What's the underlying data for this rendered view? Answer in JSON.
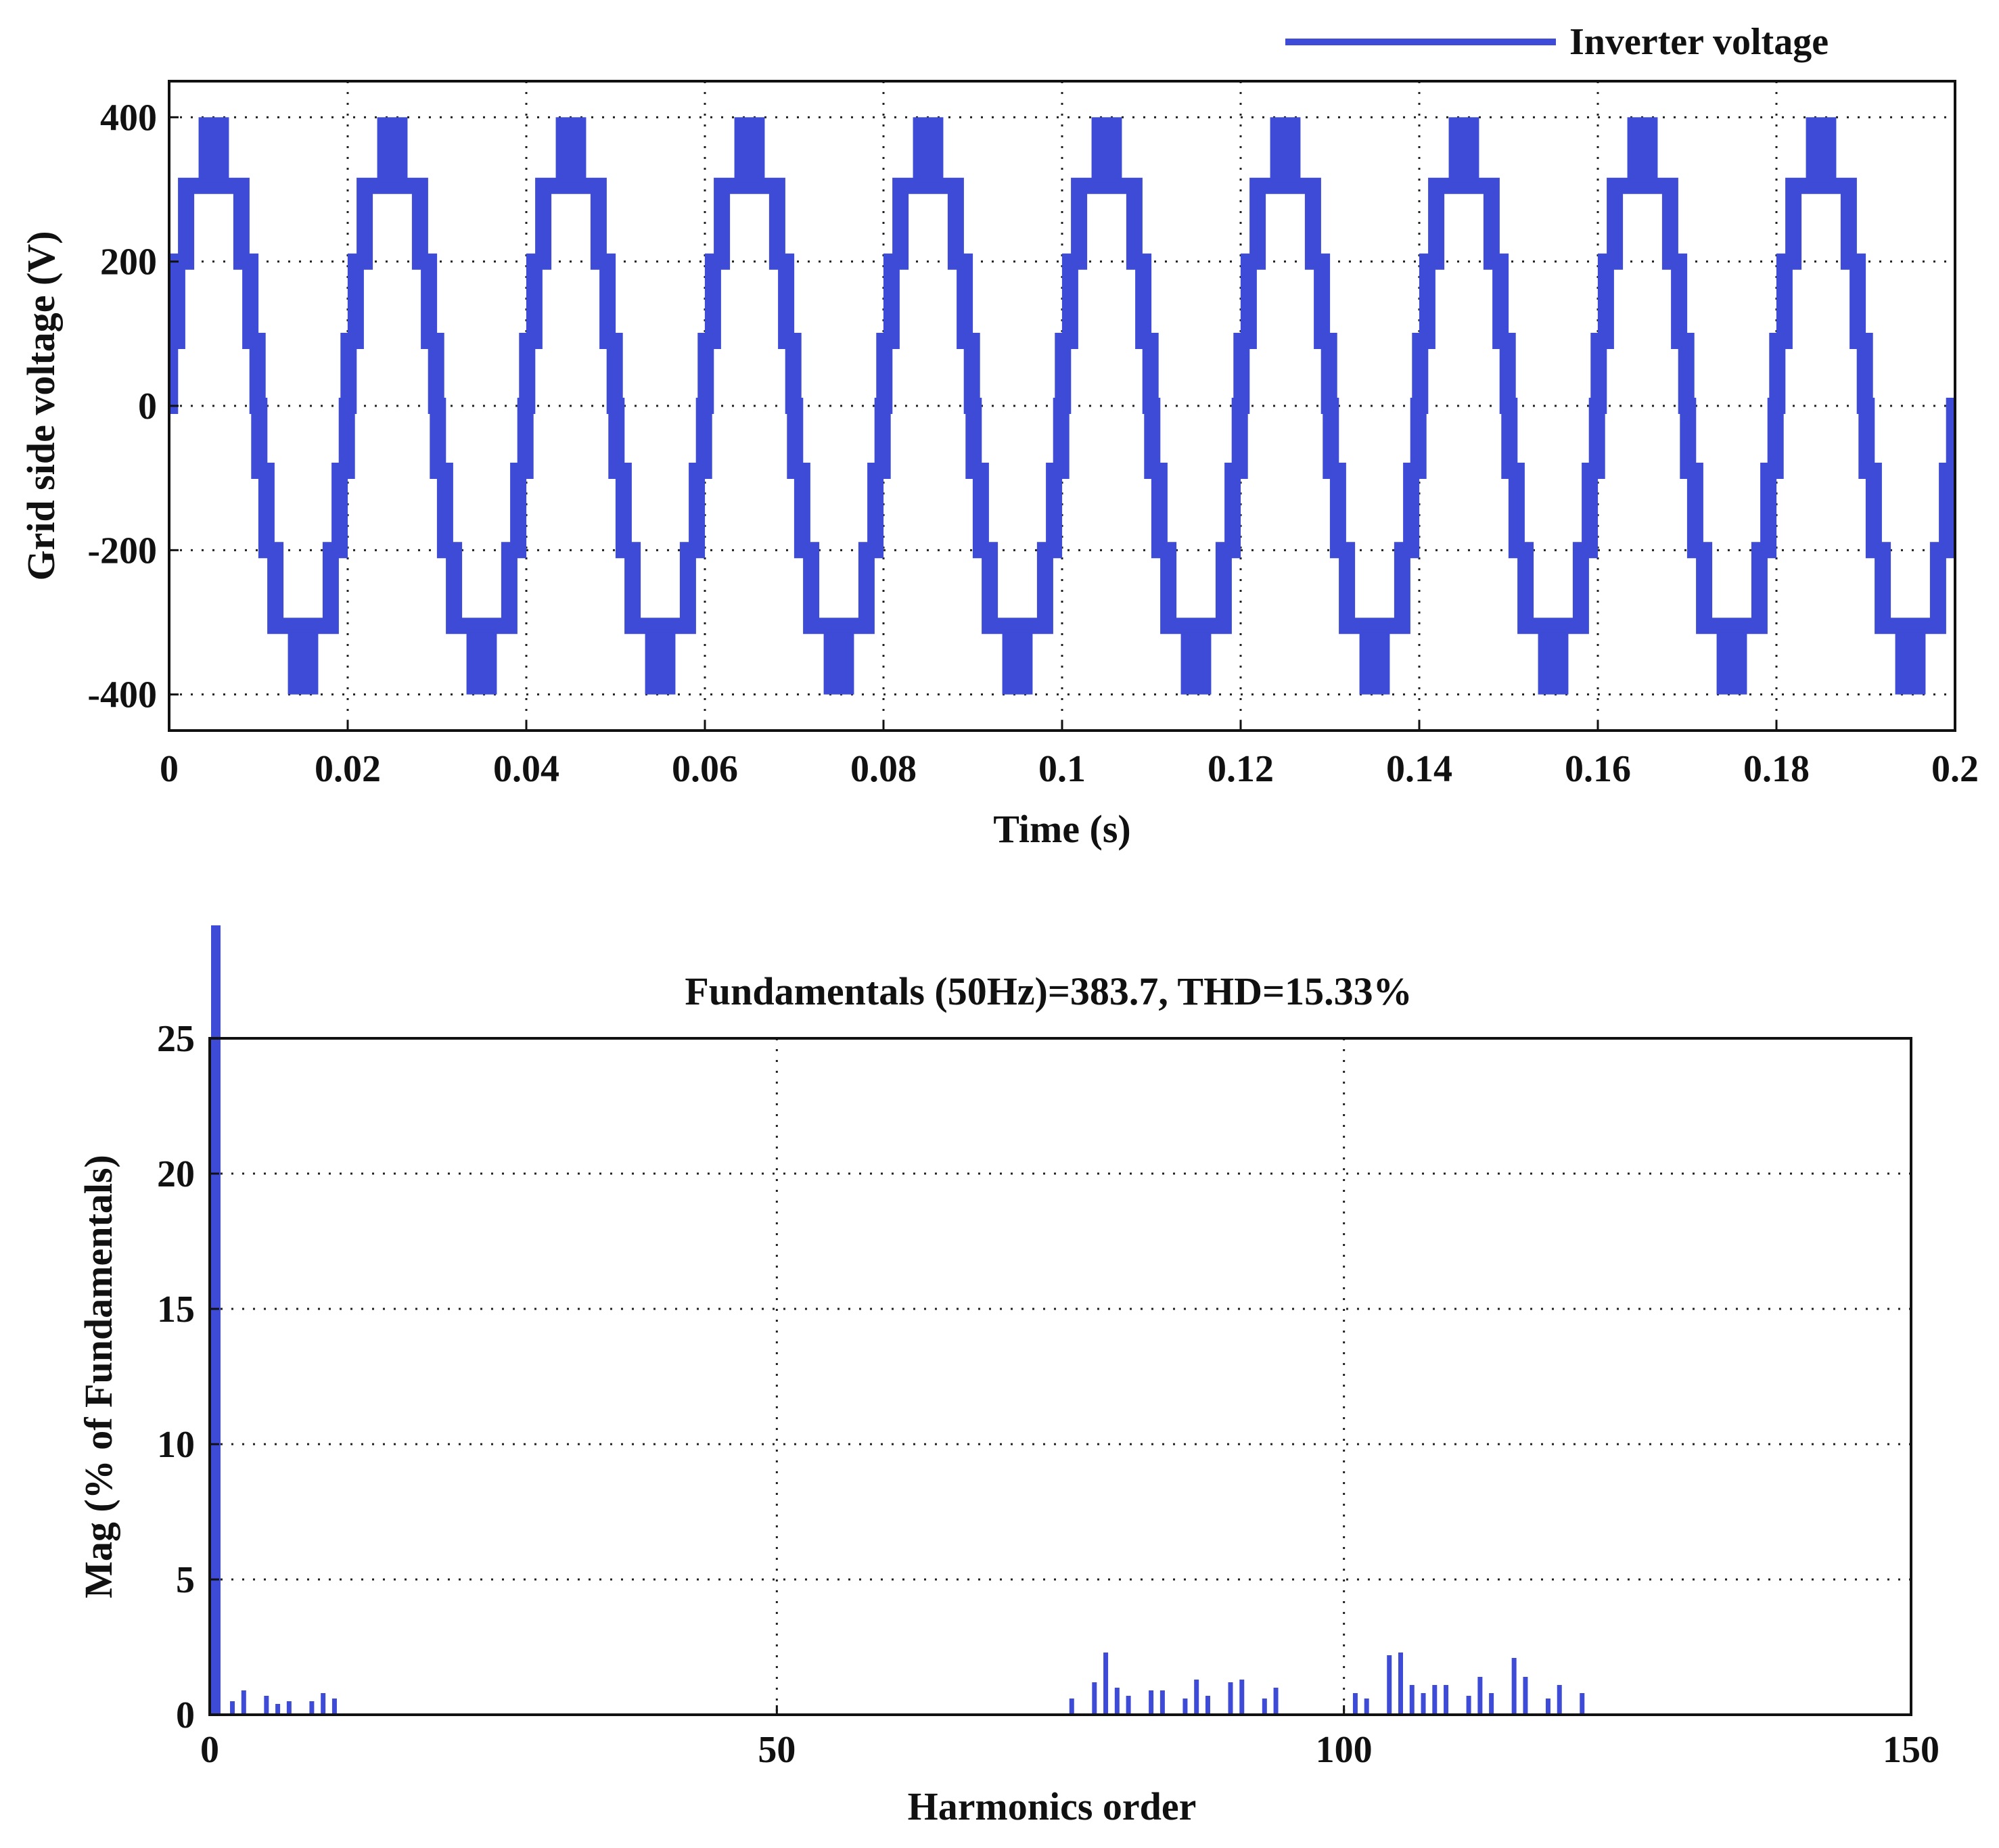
{
  "colors": {
    "series": "#3d4bd6",
    "axis": "#111111"
  },
  "chart_data": [
    {
      "type": "line",
      "title": "",
      "xlabel": "Time (s)",
      "ylabel": "Grid side voltage (V)",
      "xlim": [
        0,
        0.2
      ],
      "ylim": [
        -450,
        450
      ],
      "xticks": [
        0,
        0.02,
        0.04,
        0.06,
        0.08,
        0.1,
        0.12,
        0.14,
        0.16,
        0.18,
        0.2
      ],
      "xtick_labels": [
        "0",
        "0.02",
        "0.04",
        "0.06",
        "0.08",
        "0.1",
        "0.12",
        "0.14",
        "0.16",
        "0.18",
        "0.2"
      ],
      "yticks": [
        -400,
        -200,
        0,
        200,
        400
      ],
      "ytick_labels": [
        "-400",
        "-200",
        "0",
        "200",
        "400"
      ],
      "grid": true,
      "legend": {
        "position": "top-right",
        "entries": [
          "Inverter voltage"
        ]
      },
      "series": [
        {
          "name": "Inverter voltage",
          "frequency_hz": 50,
          "duration_s": 0.2,
          "step_levels_v": [
            0,
            90,
            200,
            305,
            400
          ],
          "peak_band_v": [
            310,
            400
          ]
        }
      ]
    },
    {
      "type": "bar",
      "title": "Fundamentals (50Hz)=383.7, THD=15.33%",
      "xlabel": "Harmonics order",
      "ylabel": "Mag (% of Fundamentals)",
      "xlim": [
        0,
        150
      ],
      "ylim": [
        0,
        25
      ],
      "xticks": [
        0,
        50,
        100,
        150
      ],
      "xtick_labels": [
        "0",
        "50",
        "100",
        "150"
      ],
      "yticks": [
        0,
        5,
        10,
        15,
        20,
        25
      ],
      "ytick_labels": [
        "0",
        "5",
        "10",
        "15",
        "20",
        "25"
      ],
      "grid": true,
      "fundamental": {
        "order": 1,
        "value": 100
      },
      "harmonics": [
        [
          2,
          0.5
        ],
        [
          3,
          0.9
        ],
        [
          5,
          0.7
        ],
        [
          6,
          0.4
        ],
        [
          7,
          0.5
        ],
        [
          9,
          0.5
        ],
        [
          10,
          0.8
        ],
        [
          11,
          0.6
        ],
        [
          76,
          0.6
        ],
        [
          78,
          1.2
        ],
        [
          79,
          2.3
        ],
        [
          80,
          1.0
        ],
        [
          81,
          0.7
        ],
        [
          83,
          0.9
        ],
        [
          84,
          0.9
        ],
        [
          86,
          0.6
        ],
        [
          87,
          1.3
        ],
        [
          88,
          0.7
        ],
        [
          90,
          1.2
        ],
        [
          91,
          1.3
        ],
        [
          93,
          0.6
        ],
        [
          94,
          1.0
        ],
        [
          101,
          0.8
        ],
        [
          102,
          0.6
        ],
        [
          104,
          2.2
        ],
        [
          105,
          2.3
        ],
        [
          106,
          1.1
        ],
        [
          107,
          0.8
        ],
        [
          108,
          1.1
        ],
        [
          109,
          1.1
        ],
        [
          111,
          0.7
        ],
        [
          112,
          1.4
        ],
        [
          113,
          0.8
        ],
        [
          115,
          2.1
        ],
        [
          116,
          1.4
        ],
        [
          118,
          0.6
        ],
        [
          119,
          1.1
        ],
        [
          121,
          0.8
        ]
      ]
    }
  ]
}
